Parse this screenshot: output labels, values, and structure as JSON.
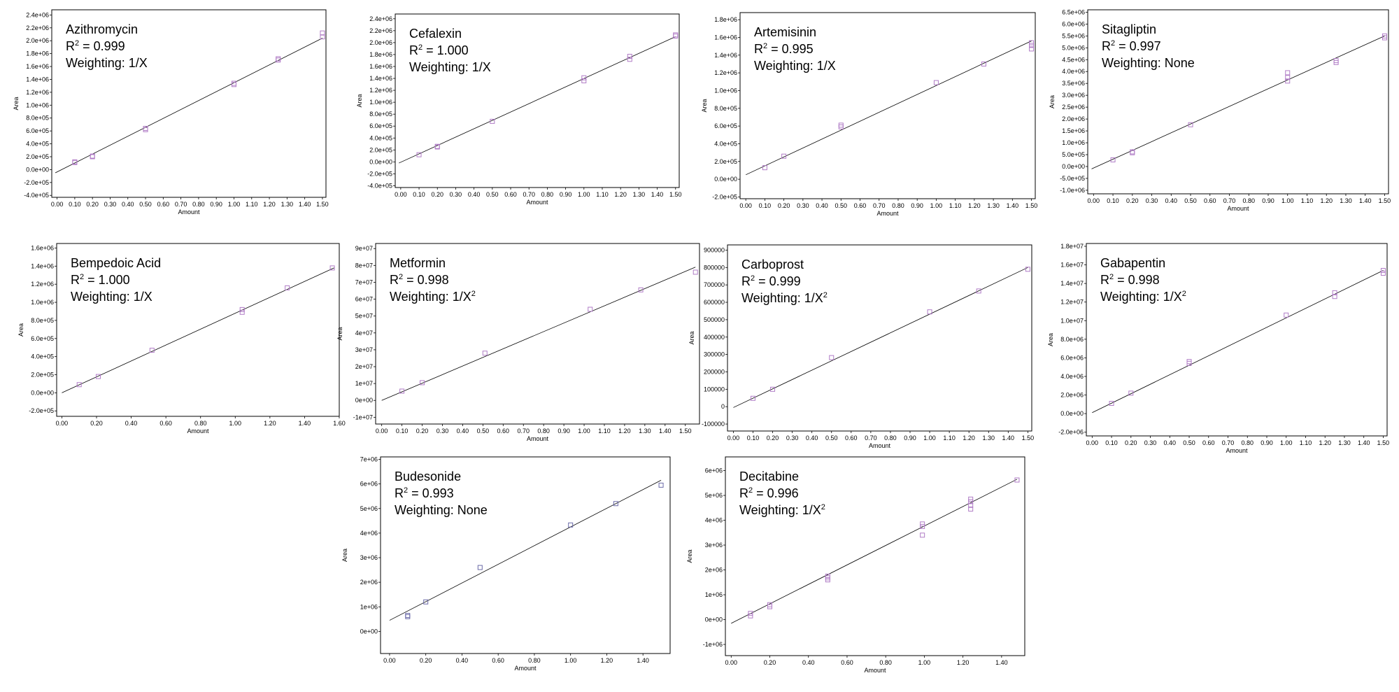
{
  "chart_data": [
    {
      "type": "scatter",
      "compound": "Azithromycin",
      "r2_label": "R² = 0.999",
      "r2_prefix": "R",
      "r2_value": " = 0.999",
      "weighting_prefix": "Weighting: ",
      "weighting": "1/X",
      "weighting_sup": "",
      "xlabel": "Amount",
      "ylabel": "Area",
      "xlim": [
        -0.03,
        1.52
      ],
      "ylim": [
        -430000,
        2480000
      ],
      "xticks": [
        0,
        0.1,
        0.2,
        0.3,
        0.4,
        0.5,
        0.6,
        0.7,
        0.8,
        0.9,
        1.0,
        1.1,
        1.2,
        1.3,
        1.4,
        1.5
      ],
      "xtick_labels": [
        "0.00",
        "0.10",
        "0.20",
        "0.30",
        "0.40",
        "0.50",
        "0.60",
        "0.70",
        "0.80",
        "0.90",
        "1.00",
        "1.10",
        "1.20",
        "1.30",
        "1.40",
        "1.50"
      ],
      "yticks": [
        -400000,
        -200000,
        0,
        200000,
        400000,
        600000,
        800000,
        1000000,
        1200000,
        1400000,
        1600000,
        1800000,
        2000000,
        2200000,
        2400000
      ],
      "ytick_labels": [
        "-4.0e+05",
        "-2.0e+05",
        "0.0e+00",
        "2.0e+05",
        "4.0e+05",
        "6.0e+05",
        "8.0e+05",
        "1.0e+06",
        "1.2e+06",
        "1.4e+06",
        "1.6e+06",
        "1.8e+06",
        "2.0e+06",
        "2.2e+06",
        "2.4e+06"
      ],
      "fit": {
        "x": [
          -0.01,
          1.5
        ],
        "y": [
          -50000,
          2040000
        ]
      },
      "points": {
        "x": [
          0.1,
          0.1,
          0.2,
          0.2,
          0.5,
          0.5,
          1.0,
          1.0,
          1.25,
          1.25,
          1.5,
          1.5
        ],
        "y": [
          110000,
          120000,
          200000,
          210000,
          620000,
          640000,
          1320000,
          1340000,
          1700000,
          1720000,
          2060000,
          2120000
        ]
      },
      "point_color": "#b07cc6"
    },
    {
      "type": "scatter",
      "compound": "Cefalexin",
      "r2_label": "R² = 1.000",
      "r2_prefix": "R",
      "r2_value": " = 1.000",
      "weighting_prefix": "Weighting: ",
      "weighting": "1/X",
      "weighting_sup": "",
      "xlabel": "Amount",
      "ylabel": "Area",
      "xlim": [
        -0.03,
        1.52
      ],
      "ylim": [
        -430000,
        2480000
      ],
      "xticks": [
        0,
        0.1,
        0.2,
        0.3,
        0.4,
        0.5,
        0.6,
        0.7,
        0.8,
        0.9,
        1.0,
        1.1,
        1.2,
        1.3,
        1.4,
        1.5
      ],
      "xtick_labels": [
        "0.00",
        "0.10",
        "0.20",
        "0.30",
        "0.40",
        "0.50",
        "0.60",
        "0.70",
        "0.80",
        "0.90",
        "1.00",
        "1.10",
        "1.20",
        "1.30",
        "1.40",
        "1.50"
      ],
      "yticks": [
        -400000,
        -200000,
        0,
        200000,
        400000,
        600000,
        800000,
        1000000,
        1200000,
        1400000,
        1600000,
        1800000,
        2000000,
        2200000,
        2400000
      ],
      "ytick_labels": [
        "-4.0e+05",
        "-2.0e+05",
        "0.0e+00",
        "2.0e+05",
        "4.0e+05",
        "6.0e+05",
        "8.0e+05",
        "1.0e+06",
        "1.2e+06",
        "1.4e+06",
        "1.6e+06",
        "1.8e+06",
        "2.0e+06",
        "2.2e+06",
        "2.4e+06"
      ],
      "fit": {
        "x": [
          -0.01,
          1.5
        ],
        "y": [
          -20000,
          2100000
        ]
      },
      "points": {
        "x": [
          0.1,
          0.2,
          0.2,
          0.5,
          1.0,
          1.0,
          1.25,
          1.25,
          1.5,
          1.5
        ],
        "y": [
          120000,
          250000,
          260000,
          680000,
          1360000,
          1410000,
          1720000,
          1770000,
          2110000,
          2130000
        ]
      },
      "point_color": "#b07cc6"
    },
    {
      "type": "scatter",
      "compound": "Artemisinin",
      "r2_label": "R² = 0.995",
      "r2_prefix": "R",
      "r2_value": " = 0.995",
      "weighting_prefix": "Weighting: ",
      "weighting": "1/X",
      "weighting_sup": "",
      "xlabel": "Amount",
      "ylabel": "Area",
      "xlim": [
        -0.03,
        1.52
      ],
      "ylim": [
        -220000,
        1880000
      ],
      "xticks": [
        0,
        0.1,
        0.2,
        0.3,
        0.4,
        0.5,
        0.6,
        0.7,
        0.8,
        0.9,
        1.0,
        1.1,
        1.2,
        1.3,
        1.4,
        1.5
      ],
      "xtick_labels": [
        "0.00",
        "0.10",
        "0.20",
        "0.30",
        "0.40",
        "0.50",
        "0.60",
        "0.70",
        "0.80",
        "0.90",
        "1.00",
        "1.10",
        "1.20",
        "1.30",
        "1.40",
        "1.50"
      ],
      "yticks": [
        -200000,
        0,
        200000,
        400000,
        600000,
        800000,
        1000000,
        1200000,
        1400000,
        1600000,
        1800000
      ],
      "ytick_labels": [
        "-2.0e+05",
        "0.0e+00",
        "2.0e+05",
        "4.0e+05",
        "6.0e+05",
        "8.0e+05",
        "1.0e+06",
        "1.2e+06",
        "1.4e+06",
        "1.6e+06",
        "1.8e+06"
      ],
      "fit": {
        "x": [
          0.0,
          1.5
        ],
        "y": [
          50000,
          1560000
        ]
      },
      "points": {
        "x": [
          0.1,
          0.2,
          0.5,
          0.5,
          1.0,
          1.25,
          1.5,
          1.5,
          1.5
        ],
        "y": [
          130000,
          260000,
          590000,
          610000,
          1090000,
          1300000,
          1470000,
          1510000,
          1540000
        ]
      },
      "point_color": "#b07cc6"
    },
    {
      "type": "scatter",
      "compound": "Sitagliptin",
      "r2_label": "R² = 0.997",
      "r2_prefix": "R",
      "r2_value": " = 0.997",
      "weighting_prefix": "Weighting: ",
      "weighting": "None",
      "weighting_sup": "",
      "xlabel": "Amount",
      "ylabel": "Area",
      "xlim": [
        -0.03,
        1.52
      ],
      "ylim": [
        -1150000,
        6600000
      ],
      "xticks": [
        0,
        0.1,
        0.2,
        0.3,
        0.4,
        0.5,
        0.6,
        0.7,
        0.8,
        0.9,
        1.0,
        1.1,
        1.2,
        1.3,
        1.4,
        1.5
      ],
      "xtick_labels": [
        "0.00",
        "0.10",
        "0.20",
        "0.30",
        "0.40",
        "0.50",
        "0.60",
        "0.70",
        "0.80",
        "0.90",
        "1.00",
        "1.10",
        "1.20",
        "1.30",
        "1.40",
        "1.50"
      ],
      "yticks": [
        -1000000,
        -500000,
        0,
        500000,
        1000000,
        1500000,
        2000000,
        2500000,
        3000000,
        3500000,
        4000000,
        4500000,
        5000000,
        5500000,
        6000000,
        6500000
      ],
      "ytick_labels": [
        "-1.0e+06",
        "-5.0e+05",
        "0.0e+00",
        "5.0e+05",
        "1.0e+06",
        "1.5e+06",
        "2.0e+06",
        "2.5e+06",
        "3.0e+06",
        "3.5e+06",
        "4.0e+06",
        "4.5e+06",
        "5.0e+06",
        "5.5e+06",
        "6.0e+06",
        "6.5e+06"
      ],
      "fit": {
        "x": [
          -0.01,
          1.5
        ],
        "y": [
          -100000,
          5500000
        ]
      },
      "points": {
        "x": [
          0.1,
          0.2,
          0.2,
          0.5,
          1.0,
          1.0,
          1.0,
          1.25,
          1.25,
          1.5,
          1.5
        ],
        "y": [
          280000,
          580000,
          620000,
          1760000,
          3600000,
          3750000,
          3950000,
          4380000,
          4460000,
          5420000,
          5500000
        ]
      },
      "point_color": "#b07cc6"
    },
    {
      "type": "scatter",
      "compound": "Bempedoic Acid",
      "r2_label": "R² = 1.000",
      "r2_prefix": "R",
      "r2_value": " = 1.000",
      "weighting_prefix": "Weighting: ",
      "weighting": "1/X",
      "weighting_sup": "",
      "xlabel": "Amount",
      "ylabel": "Area",
      "xlim": [
        -0.03,
        1.6
      ],
      "ylim": [
        -260000,
        1650000
      ],
      "xticks": [
        0,
        0.2,
        0.4,
        0.6,
        0.8,
        1.0,
        1.2,
        1.4,
        1.6
      ],
      "xtick_labels": [
        "0.00",
        "0.20",
        "0.40",
        "0.60",
        "0.80",
        "1.00",
        "1.20",
        "1.40",
        "1.60"
      ],
      "yticks": [
        -200000,
        0,
        200000,
        400000,
        600000,
        800000,
        1000000,
        1200000,
        1400000,
        1600000
      ],
      "ytick_labels": [
        "-2.0e+05",
        "0.0e+00",
        "2.0e+05",
        "4.0e+05",
        "6.0e+05",
        "8.0e+05",
        "1.0e+06",
        "1.2e+06",
        "1.4e+06",
        "1.6e+06"
      ],
      "fit": {
        "x": [
          0.0,
          1.57
        ],
        "y": [
          0,
          1380000
        ]
      },
      "points": {
        "x": [
          0.1,
          0.21,
          0.52,
          1.04,
          1.04,
          1.3,
          1.56
        ],
        "y": [
          90000,
          180000,
          470000,
          890000,
          920000,
          1160000,
          1380000
        ]
      },
      "point_color": "#b07cc6"
    },
    {
      "type": "scatter",
      "compound": "Metformin",
      "r2_label": "R² = 0.998",
      "r2_prefix": "R",
      "r2_value": " = 0.998",
      "weighting_prefix": "Weighting: 1/X",
      "weighting": "",
      "weighting_sup": "2",
      "xlabel": "Amount",
      "ylabel": "Area",
      "xlim": [
        -0.03,
        1.57
      ],
      "ylim": [
        -14000000,
        93000000
      ],
      "xticks": [
        0,
        0.1,
        0.2,
        0.3,
        0.4,
        0.5,
        0.6,
        0.7,
        0.8,
        0.9,
        1.0,
        1.1,
        1.2,
        1.3,
        1.4,
        1.5
      ],
      "xtick_labels": [
        "0.00",
        "0.10",
        "0.20",
        "0.30",
        "0.40",
        "0.50",
        "0.60",
        "0.70",
        "0.80",
        "0.90",
        "1.00",
        "1.10",
        "1.20",
        "1.30",
        "1.40",
        "1.50"
      ],
      "yticks": [
        -10000000,
        0,
        10000000,
        20000000,
        30000000,
        40000000,
        50000000,
        60000000,
        70000000,
        80000000,
        90000000
      ],
      "ytick_labels": [
        "-1e+07",
        "0e+00",
        "1e+07",
        "2e+07",
        "3e+07",
        "4e+07",
        "5e+07",
        "6e+07",
        "7e+07",
        "8e+07",
        "9e+07"
      ],
      "fit": {
        "x": [
          0.0,
          1.55
        ],
        "y": [
          0,
          79000000
        ]
      },
      "points": {
        "x": [
          0.1,
          0.2,
          0.51,
          1.03,
          1.28,
          1.55
        ],
        "y": [
          5500000,
          10500000,
          28000000,
          54000000,
          65500000,
          76000000
        ]
      },
      "point_color": "#b07cc6"
    },
    {
      "type": "scatter",
      "compound": "Carboprost",
      "r2_label": "R² = 0.999",
      "r2_prefix": "R",
      "r2_value": " = 0.999",
      "weighting_prefix": "Weighting: 1/X",
      "weighting": "",
      "weighting_sup": "2",
      "xlabel": "Amount",
      "ylabel": "Area",
      "xlim": [
        -0.03,
        1.52
      ],
      "ylim": [
        -140000,
        930000
      ],
      "xticks": [
        0,
        0.1,
        0.2,
        0.3,
        0.4,
        0.5,
        0.6,
        0.7,
        0.8,
        0.9,
        1.0,
        1.1,
        1.2,
        1.3,
        1.4,
        1.5
      ],
      "xtick_labels": [
        "0.00",
        "0.10",
        "0.20",
        "0.30",
        "0.40",
        "0.50",
        "0.60",
        "0.70",
        "0.80",
        "0.90",
        "1.00",
        "1.10",
        "1.20",
        "1.30",
        "1.40",
        "1.50"
      ],
      "yticks": [
        -100000,
        0,
        100000,
        200000,
        300000,
        400000,
        500000,
        600000,
        700000,
        800000,
        900000
      ],
      "ytick_labels": [
        "-100000",
        "0",
        "100000",
        "200000",
        "300000",
        "400000",
        "500000",
        "600000",
        "700000",
        "800000",
        "900000"
      ],
      "fit": {
        "x": [
          0.0,
          1.5
        ],
        "y": [
          -5000,
          800000
        ]
      },
      "points": {
        "x": [
          0.1,
          0.2,
          0.5,
          1.0,
          1.25,
          1.5
        ],
        "y": [
          48000,
          100000,
          282000,
          545000,
          665000,
          790000
        ]
      },
      "point_color": "#b07cc6"
    },
    {
      "type": "scatter",
      "compound": "Gabapentin",
      "r2_label": "R² = 0.998",
      "r2_prefix": "R",
      "r2_value": " = 0.998",
      "weighting_prefix": "Weighting: 1/X",
      "weighting": "",
      "weighting_sup": "2",
      "xlabel": "Amount",
      "ylabel": "Area",
      "xlim": [
        -0.03,
        1.52
      ],
      "ylim": [
        -2400000,
        18300000
      ],
      "xticks": [
        0,
        0.1,
        0.2,
        0.3,
        0.4,
        0.5,
        0.6,
        0.7,
        0.8,
        0.9,
        1.0,
        1.1,
        1.2,
        1.3,
        1.4,
        1.5
      ],
      "xtick_labels": [
        "0.00",
        "0.10",
        "0.20",
        "0.30",
        "0.40",
        "0.50",
        "0.60",
        "0.70",
        "0.80",
        "0.90",
        "1.00",
        "1.10",
        "1.20",
        "1.30",
        "1.40",
        "1.50"
      ],
      "yticks": [
        -2000000,
        0,
        2000000,
        4000000,
        6000000,
        8000000,
        10000000,
        12000000,
        14000000,
        16000000,
        18000000
      ],
      "ytick_labels": [
        "-2.0e+06",
        "0.0e+00",
        "2.0e+06",
        "4.0e+06",
        "6.0e+06",
        "8.0e+06",
        "1.0e+07",
        "1.2e+07",
        "1.4e+07",
        "1.6e+07",
        "1.8e+07"
      ],
      "fit": {
        "x": [
          0.0,
          1.5
        ],
        "y": [
          100000,
          15400000
        ]
      },
      "points": {
        "x": [
          0.1,
          0.2,
          0.5,
          0.5,
          1.0,
          1.25,
          1.25,
          1.5,
          1.5
        ],
        "y": [
          1100000,
          2200000,
          5400000,
          5600000,
          10600000,
          12600000,
          13000000,
          15100000,
          15400000
        ]
      },
      "point_color": "#b07cc6"
    },
    {
      "type": "scatter",
      "compound": "Budesonide",
      "r2_label": "R² = 0.993",
      "r2_prefix": "R",
      "r2_value": " = 0.993",
      "weighting_prefix": "Weighting: ",
      "weighting": "None",
      "weighting_sup": "",
      "xlabel": "Amount",
      "ylabel": "Area",
      "xlim": [
        -0.05,
        1.55
      ],
      "ylim": [
        -900000,
        7100000
      ],
      "xticks": [
        0,
        0.2,
        0.4,
        0.6,
        0.8,
        1.0,
        1.2,
        1.4
      ],
      "xtick_labels": [
        "0.00",
        "0.20",
        "0.40",
        "0.60",
        "0.80",
        "1.00",
        "1.20",
        "1.40"
      ],
      "yticks": [
        0,
        1000000,
        2000000,
        3000000,
        4000000,
        5000000,
        6000000,
        7000000
      ],
      "ytick_labels": [
        "0e+00",
        "1e+06",
        "2e+06",
        "3e+06",
        "4e+06",
        "5e+06",
        "6e+06",
        "7e+06"
      ],
      "fit": {
        "x": [
          0.0,
          1.5
        ],
        "y": [
          450000,
          6150000
        ]
      },
      "points": {
        "x": [
          0.1,
          0.1,
          0.2,
          0.5,
          1.0,
          1.25,
          1.5
        ],
        "y": [
          600000,
          650000,
          1200000,
          2600000,
          4330000,
          5200000,
          5950000
        ]
      },
      "point_color": "#6b6aa8"
    },
    {
      "type": "scatter",
      "compound": "Decitabine",
      "r2_label": "R² = 0.996",
      "r2_prefix": "R",
      "r2_value": " = 0.996",
      "weighting_prefix": "Weighting: 1/X",
      "weighting": "",
      "weighting_sup": "2",
      "xlabel": "Amount",
      "ylabel": "Area",
      "xlim": [
        -0.03,
        1.52
      ],
      "ylim": [
        -1450000,
        6550000
      ],
      "xticks": [
        0,
        0.2,
        0.4,
        0.6,
        0.8,
        1.0,
        1.2,
        1.4
      ],
      "xtick_labels": [
        "0.00",
        "0.20",
        "0.40",
        "0.60",
        "0.80",
        "1.00",
        "1.20",
        "1.40"
      ],
      "yticks": [
        -1000000,
        0,
        1000000,
        2000000,
        3000000,
        4000000,
        5000000,
        6000000
      ],
      "ytick_labels": [
        "-1e+06",
        "0e+00",
        "1e+06",
        "2e+06",
        "3e+06",
        "4e+06",
        "5e+06",
        "6e+06"
      ],
      "fit": {
        "x": [
          0.0,
          1.48
        ],
        "y": [
          -150000,
          5650000
        ]
      },
      "points": {
        "x": [
          0.1,
          0.1,
          0.2,
          0.2,
          0.5,
          0.5,
          0.5,
          0.99,
          0.99,
          0.99,
          1.24,
          1.24,
          1.24,
          1.24,
          1.48
        ],
        "y": [
          150000,
          250000,
          520000,
          600000,
          1600000,
          1680000,
          1750000,
          3400000,
          3750000,
          3850000,
          4450000,
          4600000,
          4750000,
          4850000,
          5620000
        ]
      },
      "point_color": "#b07cc6"
    }
  ]
}
